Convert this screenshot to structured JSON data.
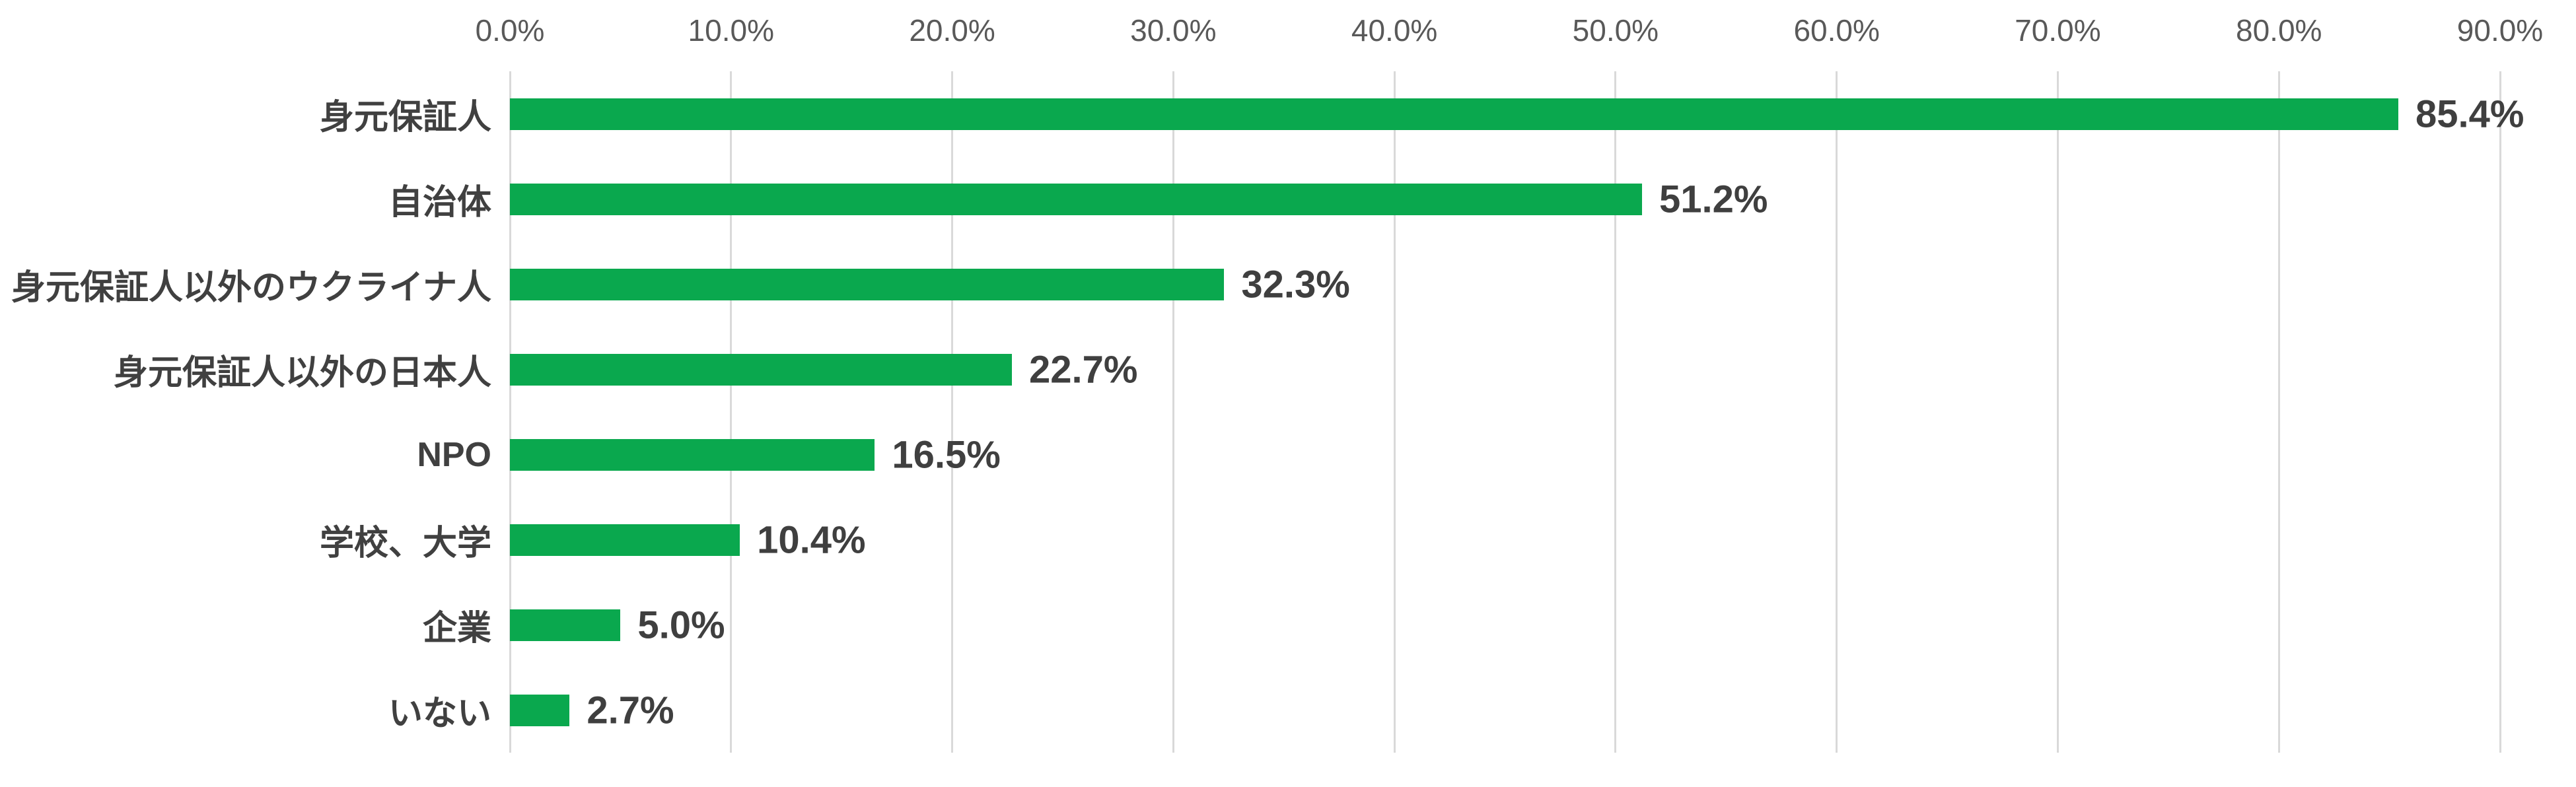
{
  "chart_data": {
    "type": "bar",
    "orientation": "horizontal",
    "title": "",
    "xlabel": "",
    "ylabel": "",
    "categories": [
      "身元保証人",
      "自治体",
      "身元保証人以外のウクライナ人",
      "身元保証人以外の日本人",
      "NPO",
      "学校、大学",
      "企業",
      "いない"
    ],
    "values": [
      85.4,
      51.2,
      32.3,
      22.7,
      16.5,
      10.4,
      5.0,
      2.7
    ],
    "value_labels": [
      "85.4%",
      "51.2%",
      "32.3%",
      "22.7%",
      "16.5%",
      "10.4%",
      "5.0%",
      "2.7%"
    ],
    "x_ticks": [
      "0.0%",
      "10.0%",
      "20.0%",
      "30.0%",
      "40.0%",
      "50.0%",
      "60.0%",
      "70.0%",
      "80.0%",
      "90.0%"
    ],
    "xlim": [
      0,
      90
    ],
    "grid": true,
    "legend": "none",
    "colors": {
      "bar": "#0aa84e",
      "category_label": "#404040",
      "value_label": "#3f3f3f",
      "tick_label": "#595959",
      "gridline": "#d9d9d9",
      "background": "#ffffff"
    }
  }
}
